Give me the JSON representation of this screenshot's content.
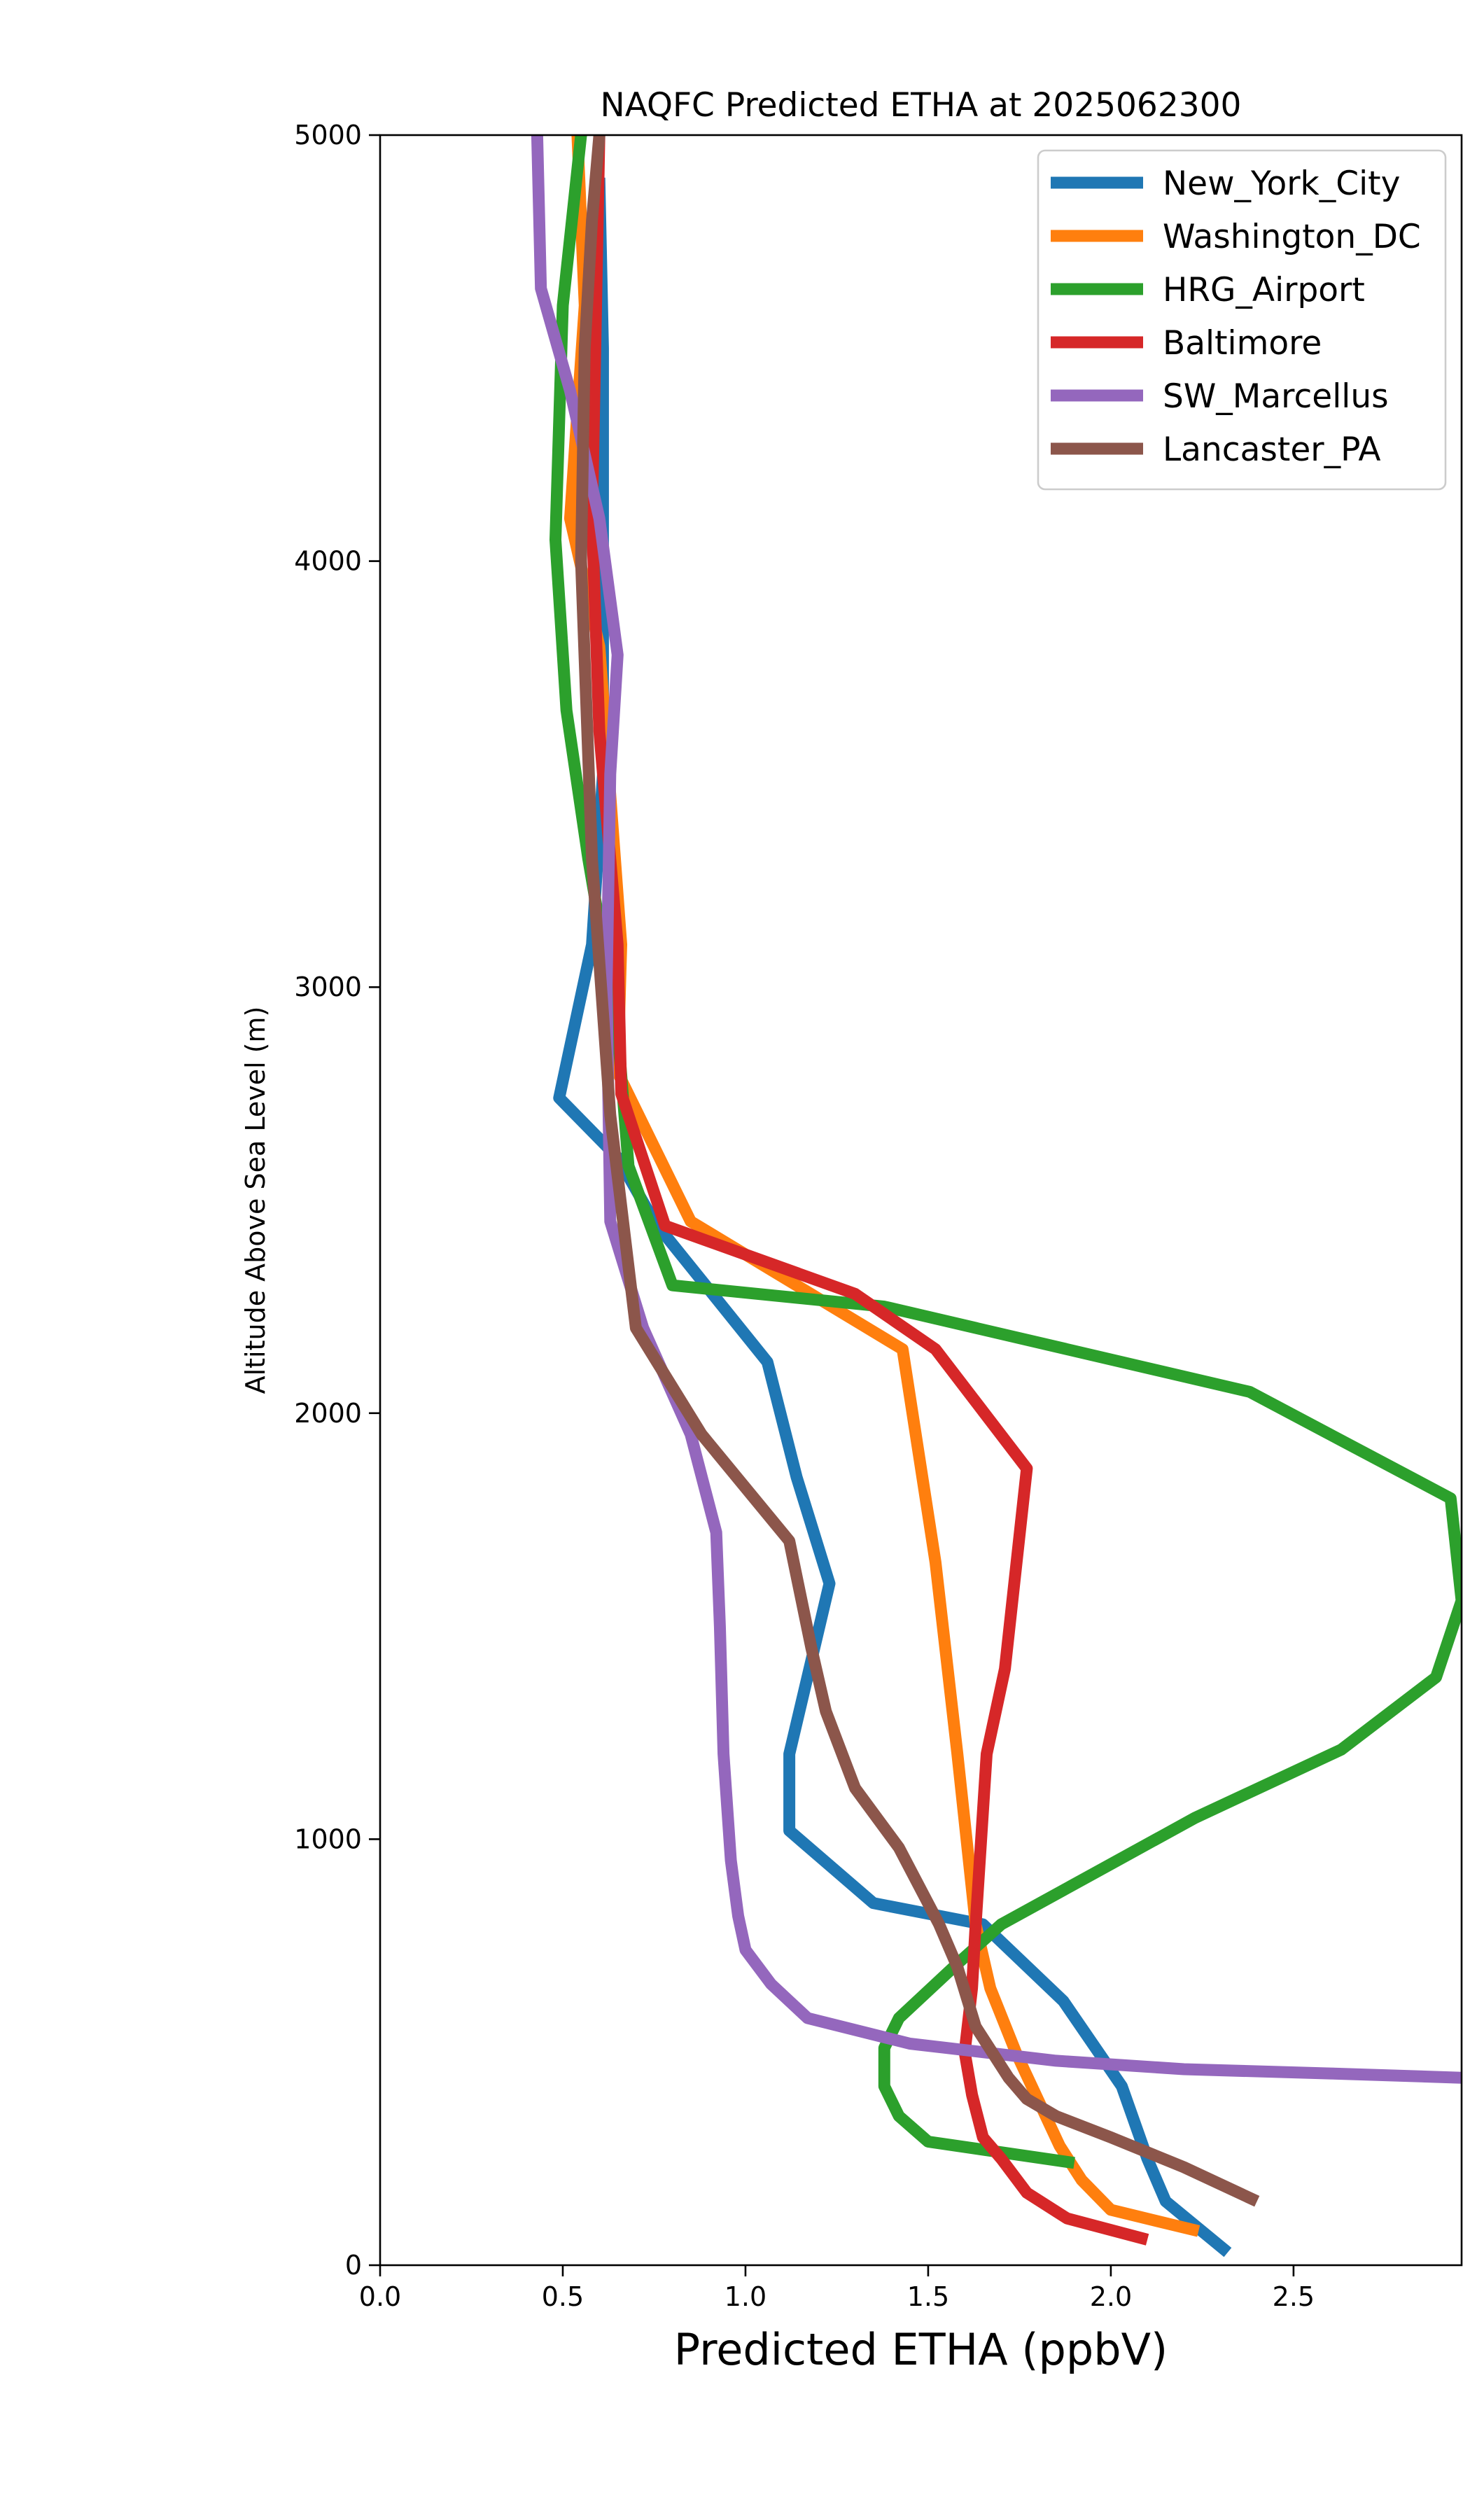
{
  "chart_data": {
    "type": "line",
    "title": "NAQFC Predicted ETHA at 2025062300",
    "xlabel": "Predicted ETHA (ppbV)",
    "ylabel": "Altitude Above Sea Level (m)",
    "xlim": [
      0,
      2.96
    ],
    "ylim": [
      0,
      5000
    ],
    "xticks": [
      0.0,
      0.5,
      1.0,
      1.5,
      2.0,
      2.5
    ],
    "xtick_labels": [
      "0.0",
      "0.5",
      "1.0",
      "1.5",
      "2.0",
      "2.5"
    ],
    "yticks": [
      0,
      1000,
      2000,
      3000,
      4000,
      5000
    ],
    "ytick_labels": [
      "0",
      "1000",
      "2000",
      "3000",
      "4000",
      "5000"
    ],
    "grid": false,
    "legend_position": "top-right",
    "series": [
      {
        "name": "New_York_City",
        "color": "#1f77b4",
        "x": [
          2.32,
          2.15,
          2.1,
          2.03,
          1.87,
          1.65,
          1.35,
          1.12,
          1.12,
          1.23,
          1.14,
          1.06,
          0.75,
          0.65,
          0.49,
          0.58,
          0.61,
          0.61,
          0.61,
          0.6
        ],
        "y": [
          30,
          150,
          250,
          420,
          620,
          800,
          850,
          1020,
          1200,
          1600,
          1850,
          2120,
          2450,
          2600,
          2740,
          3100,
          3500,
          4000,
          4500,
          4900
        ]
      },
      {
        "name": "Washington_DC",
        "color": "#ff7f0e",
        "x": [
          2.24,
          2.0,
          1.92,
          1.86,
          1.74,
          1.67,
          1.63,
          1.58,
          1.52,
          1.43,
          0.85,
          0.65,
          0.66,
          0.6,
          0.52,
          0.56,
          0.54
        ],
        "y": [
          80,
          130,
          200,
          280,
          500,
          650,
          800,
          1200,
          1650,
          2150,
          2450,
          2800,
          3100,
          3800,
          4100,
          4600,
          5000
        ]
      },
      {
        "name": "HRG_Airport",
        "color": "#2ca02c",
        "x": [
          1.9,
          1.5,
          1.42,
          1.38,
          1.38,
          1.42,
          1.57,
          1.7,
          2.23,
          2.63,
          2.89,
          2.96,
          2.93,
          2.38,
          1.38,
          0.8,
          0.68,
          0.65,
          0.57,
          0.51,
          0.48,
          0.5,
          0.55
        ],
        "y": [
          240,
          290,
          350,
          420,
          510,
          580,
          700,
          800,
          1050,
          1210,
          1380,
          1560,
          1800,
          2050,
          2250,
          2300,
          2580,
          2900,
          3300,
          3650,
          4050,
          4600,
          5000
        ]
      },
      {
        "name": "Baltimore",
        "color": "#d62728",
        "x": [
          2.1,
          1.88,
          1.77,
          1.7,
          1.65,
          1.62,
          1.6,
          1.62,
          1.63,
          1.66,
          1.71,
          1.77,
          1.52,
          1.3,
          0.78,
          0.66,
          0.65,
          0.6,
          0.58,
          0.6
        ],
        "y": [
          60,
          110,
          170,
          250,
          300,
          400,
          500,
          650,
          800,
          1200,
          1400,
          1870,
          2150,
          2280,
          2440,
          2750,
          3100,
          3600,
          4100,
          5000
        ]
      },
      {
        "name": "SW_Marcellus",
        "color": "#9467bd",
        "x": [
          2.96,
          2.6,
          2.2,
          1.85,
          1.55,
          1.45,
          1.17,
          1.07,
          1.0,
          0.98,
          0.96,
          0.94,
          0.93,
          0.92,
          0.85,
          0.72,
          0.63,
          0.62,
          0.63,
          0.65,
          0.6,
          0.52,
          0.44,
          0.43
        ],
        "y": [
          440,
          450,
          460,
          480,
          510,
          520,
          580,
          660,
          740,
          820,
          950,
          1200,
          1500,
          1720,
          1950,
          2200,
          2450,
          3000,
          3500,
          3780,
          4100,
          4400,
          4640,
          5000
        ]
      },
      {
        "name": "Lancaster_PA",
        "color": "#8c564b",
        "x": [
          2.4,
          2.2,
          2.0,
          1.85,
          1.77,
          1.72,
          1.63,
          1.58,
          1.53,
          1.42,
          1.3,
          1.22,
          1.18,
          1.12,
          0.88,
          0.7,
          0.63,
          0.58,
          0.55,
          0.56,
          0.58,
          0.6
        ],
        "y": [
          150,
          230,
          300,
          350,
          390,
          440,
          560,
          700,
          800,
          980,
          1120,
          1300,
          1450,
          1700,
          1950,
          2200,
          2700,
          3300,
          4000,
          4500,
          4800,
          5000
        ]
      }
    ]
  }
}
